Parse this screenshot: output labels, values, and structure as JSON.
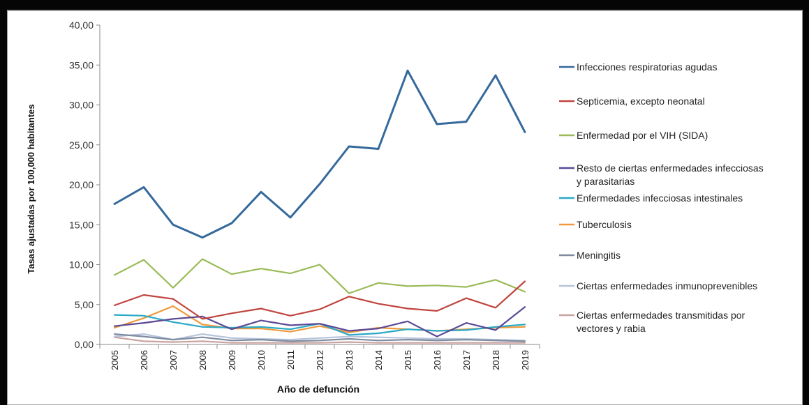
{
  "chart_data": {
    "type": "line",
    "title": "",
    "xlabel": "Año de defunción",
    "ylabel": "Tasas ajustadas por 100,000 habitantes",
    "ylim": [
      0,
      40
    ],
    "yticks": [
      "0,00",
      "5,00",
      "10,00",
      "15,00",
      "20,00",
      "25,00",
      "30,00",
      "35,00",
      "40,00"
    ],
    "grid": false,
    "legend_position": "right",
    "categories": [
      "2005",
      "2006",
      "2007",
      "2008",
      "2009",
      "2010",
      "2011",
      "2012",
      "2013",
      "2014",
      "2015",
      "2016",
      "2017",
      "2018",
      "2019"
    ],
    "series": [
      {
        "name": "Infecciones respiratorias agudas",
        "color": "#35699c",
        "values": [
          17.6,
          19.7,
          15.0,
          13.4,
          15.2,
          19.1,
          15.9,
          20.1,
          24.8,
          24.5,
          34.3,
          27.6,
          27.9,
          33.7,
          26.6
        ]
      },
      {
        "name": "Septicemia, excepto neonatal",
        "color": "#c0443e",
        "values": [
          4.9,
          6.2,
          5.7,
          3.2,
          3.9,
          4.5,
          3.6,
          4.4,
          6.0,
          5.1,
          4.5,
          4.2,
          5.8,
          4.6,
          7.9
        ]
      },
      {
        "name": "Enfermedad por el VIH (SIDA)",
        "color": "#9bbb59",
        "values": [
          8.7,
          10.6,
          7.1,
          10.7,
          8.8,
          9.5,
          8.9,
          10.0,
          6.4,
          7.7,
          7.3,
          7.4,
          7.2,
          8.1,
          6.6
        ]
      },
      {
        "name": "Resto de ciertas enfermedades infecciosas y parasitarias",
        "color": "#5b4996",
        "values": [
          2.3,
          2.7,
          3.2,
          3.5,
          1.9,
          3.0,
          2.4,
          2.6,
          1.7,
          2.0,
          2.9,
          1.0,
          2.7,
          1.8,
          4.7
        ]
      },
      {
        "name": "Enfermedades infecciosas intestinales",
        "color": "#2aa9c6",
        "values": [
          3.7,
          3.6,
          2.8,
          2.2,
          2.1,
          2.2,
          1.9,
          2.6,
          1.2,
          1.4,
          1.9,
          1.7,
          1.8,
          2.2,
          2.5
        ]
      },
      {
        "name": "Tuberculosis",
        "color": "#ef9a3a",
        "values": [
          2.1,
          3.3,
          4.8,
          2.5,
          2.0,
          2.0,
          1.6,
          2.3,
          1.5,
          2.1,
          1.9,
          1.7,
          1.9,
          2.1,
          2.2
        ]
      },
      {
        "name": "Meningitis",
        "color": "#7f8ca0",
        "values": [
          1.3,
          1.0,
          0.6,
          0.9,
          0.5,
          0.6,
          0.4,
          0.5,
          0.7,
          0.5,
          0.6,
          0.5,
          0.6,
          0.5,
          0.4
        ]
      },
      {
        "name": "Ciertas enfermedades inmunoprevenibles",
        "color": "#b6c4dc",
        "values": [
          1.0,
          1.3,
          0.6,
          1.3,
          0.8,
          0.7,
          0.6,
          0.8,
          1.0,
          0.9,
          0.8,
          0.7,
          0.7,
          0.6,
          0.5
        ]
      },
      {
        "name": "Ciertas enfermedades transmitidas por vectores y rabia",
        "color": "#c9a3a0",
        "values": [
          0.9,
          0.4,
          0.3,
          0.4,
          0.2,
          0.2,
          0.2,
          0.2,
          0.3,
          0.2,
          0.2,
          0.2,
          0.2,
          0.2,
          0.2
        ]
      }
    ]
  }
}
